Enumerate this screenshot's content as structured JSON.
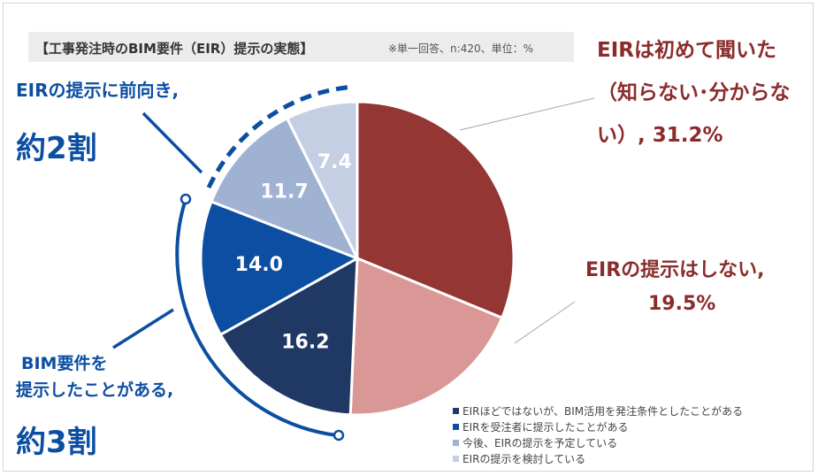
{
  "title": "【工事発注時のBIM要件（EIR）提示の実態】",
  "note": "※単一回答、n:420、単位：%",
  "callouts": {
    "positive_line1": "EIRの提示に前向き,",
    "positive_line2": "約2割",
    "presented_line1": "BIM要件を",
    "presented_line2": "提示したことがある,",
    "presented_line3": "約3割",
    "first_line1": "EIRは初めて聞いた",
    "first_line2": "（知らない･分からな",
    "first_line3": "い）, 31.2%",
    "none_line1": "EIRの提示はしない,",
    "none_line2": "19.5%"
  },
  "colors": {
    "dark_red": "#943634",
    "pink": "#d99795",
    "navy": "#1f3864",
    "blue": "#0b4ea2",
    "light_blue": "#9fb2d2",
    "pale_blue": "#c5cfe3",
    "accent_blue": "#0b4ea2",
    "accent_red": "#8b2b2b"
  },
  "chart_data": {
    "type": "pie",
    "title": "【工事発注時のBIM要件（EIR）提示の実態】",
    "unit": "%",
    "slices": [
      {
        "name": "EIRは初めて聞いた（知らない･分からない）",
        "value": 31.2,
        "color": "#943634"
      },
      {
        "name": "EIRの提示はしない",
        "value": 19.5,
        "color": "#d99795"
      },
      {
        "name": "EIRほどではないが、BIM活用を発注条件としたことがある",
        "value": 16.2,
        "label": "16.2",
        "color": "#1f3864"
      },
      {
        "name": "EIRを受注者に提示したことがある",
        "value": 14.0,
        "label": "14.0",
        "color": "#0b4ea2"
      },
      {
        "name": "今後、EIRの提示を予定している",
        "value": 11.7,
        "label": "11.7",
        "color": "#9fb2d2"
      },
      {
        "name": "EIRの提示を検討している",
        "value": 7.4,
        "label": "7.4",
        "color": "#c5cfe3"
      }
    ],
    "legend": [
      {
        "label": "EIRほどではないが、BIM活用を発注条件としたことがある",
        "color": "#1f3864"
      },
      {
        "label": "EIRを受注者に提示したことがある",
        "color": "#0b4ea2"
      },
      {
        "label": "今後、EIRの提示を予定している",
        "color": "#9fb2d2"
      },
      {
        "label": "EIRの提示を検討している",
        "color": "#c5cfe3"
      }
    ],
    "legend_position": "bottom-right"
  }
}
